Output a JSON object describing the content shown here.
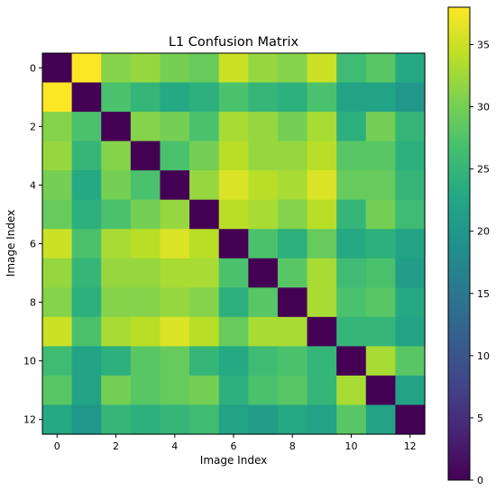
{
  "chart_data": {
    "type": "heatmap",
    "title": "L1 Confusion Matrix",
    "xlabel": "Image Index",
    "ylabel": "Image Index",
    "x_ticks": [
      0,
      2,
      4,
      6,
      8,
      10,
      12
    ],
    "y_ticks": [
      0,
      2,
      4,
      6,
      8,
      10,
      12
    ],
    "colorbar": {
      "colormap": "viridis",
      "range": [
        0,
        38
      ],
      "ticks": [
        0,
        5,
        10,
        15,
        20,
        25,
        30,
        35
      ]
    },
    "matrix": [
      [
        0,
        38,
        31,
        32,
        30,
        29,
        35,
        32,
        31,
        35,
        26,
        28,
        23
      ],
      [
        38,
        0,
        27,
        25,
        23,
        24,
        27,
        25,
        24,
        27,
        22,
        22,
        20
      ],
      [
        31,
        27,
        0,
        31,
        30,
        27,
        33,
        32,
        30,
        33,
        24,
        30,
        25
      ],
      [
        32,
        25,
        31,
        0,
        27,
        30,
        34,
        32,
        32,
        34,
        28,
        28,
        24
      ],
      [
        30,
        23,
        30,
        27,
        0,
        32,
        36,
        34,
        33,
        36,
        29,
        29,
        25
      ],
      [
        29,
        24,
        27,
        30,
        32,
        0,
        34,
        33,
        31,
        34,
        25,
        30,
        26
      ],
      [
        35,
        27,
        33,
        34,
        36,
        34,
        0,
        27,
        24,
        29,
        23,
        24,
        22
      ],
      [
        32,
        25,
        32,
        32,
        33,
        33,
        27,
        0,
        28,
        33,
        26,
        27,
        21
      ],
      [
        31,
        24,
        31,
        31,
        32,
        31,
        24,
        28,
        0,
        33,
        27,
        28,
        23
      ],
      [
        35,
        27,
        33,
        34,
        36,
        34,
        29,
        33,
        33,
        0,
        25,
        25,
        22
      ],
      [
        26,
        22,
        24,
        28,
        29,
        25,
        23,
        26,
        27,
        25,
        0,
        33,
        28
      ],
      [
        28,
        22,
        30,
        28,
        29,
        30,
        24,
        27,
        28,
        25,
        33,
        0,
        22
      ],
      [
        23,
        20,
        25,
        24,
        25,
        26,
        22,
        21,
        23,
        22,
        28,
        22,
        0
      ]
    ]
  }
}
